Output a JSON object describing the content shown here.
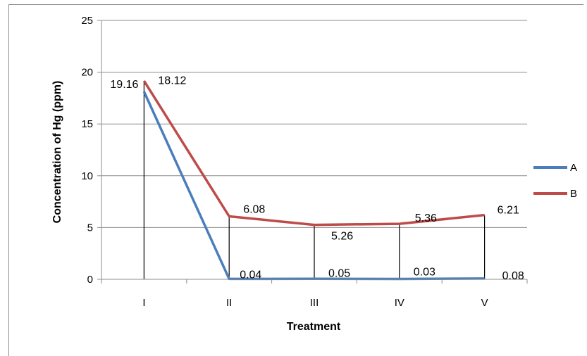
{
  "chart_data": {
    "type": "line",
    "categories": [
      "I",
      "II",
      "III",
      "IV",
      "V"
    ],
    "series": [
      {
        "name": "A",
        "values": [
          18.12,
          0.04,
          0.05,
          0.03,
          0.08
        ],
        "color": "#4a7ebb",
        "labels": [
          "18.12",
          "0.04",
          "0.05",
          "0.03",
          "0.08"
        ]
      },
      {
        "name": "B",
        "values": [
          19.16,
          6.08,
          5.26,
          5.36,
          6.21
        ],
        "color": "#be4b48",
        "labels": [
          "19.16",
          "6.08",
          "5.26",
          "5.36",
          "6.21"
        ]
      }
    ],
    "title": "",
    "xlabel": "Treatment",
    "ylabel": "Concentration of Hg (ppm)",
    "ylim": [
      0,
      25
    ],
    "yticks": [
      "0",
      "5",
      "10",
      "15",
      "20",
      "25"
    ],
    "grid": true,
    "drop_lines": true,
    "legend_position": "right"
  }
}
